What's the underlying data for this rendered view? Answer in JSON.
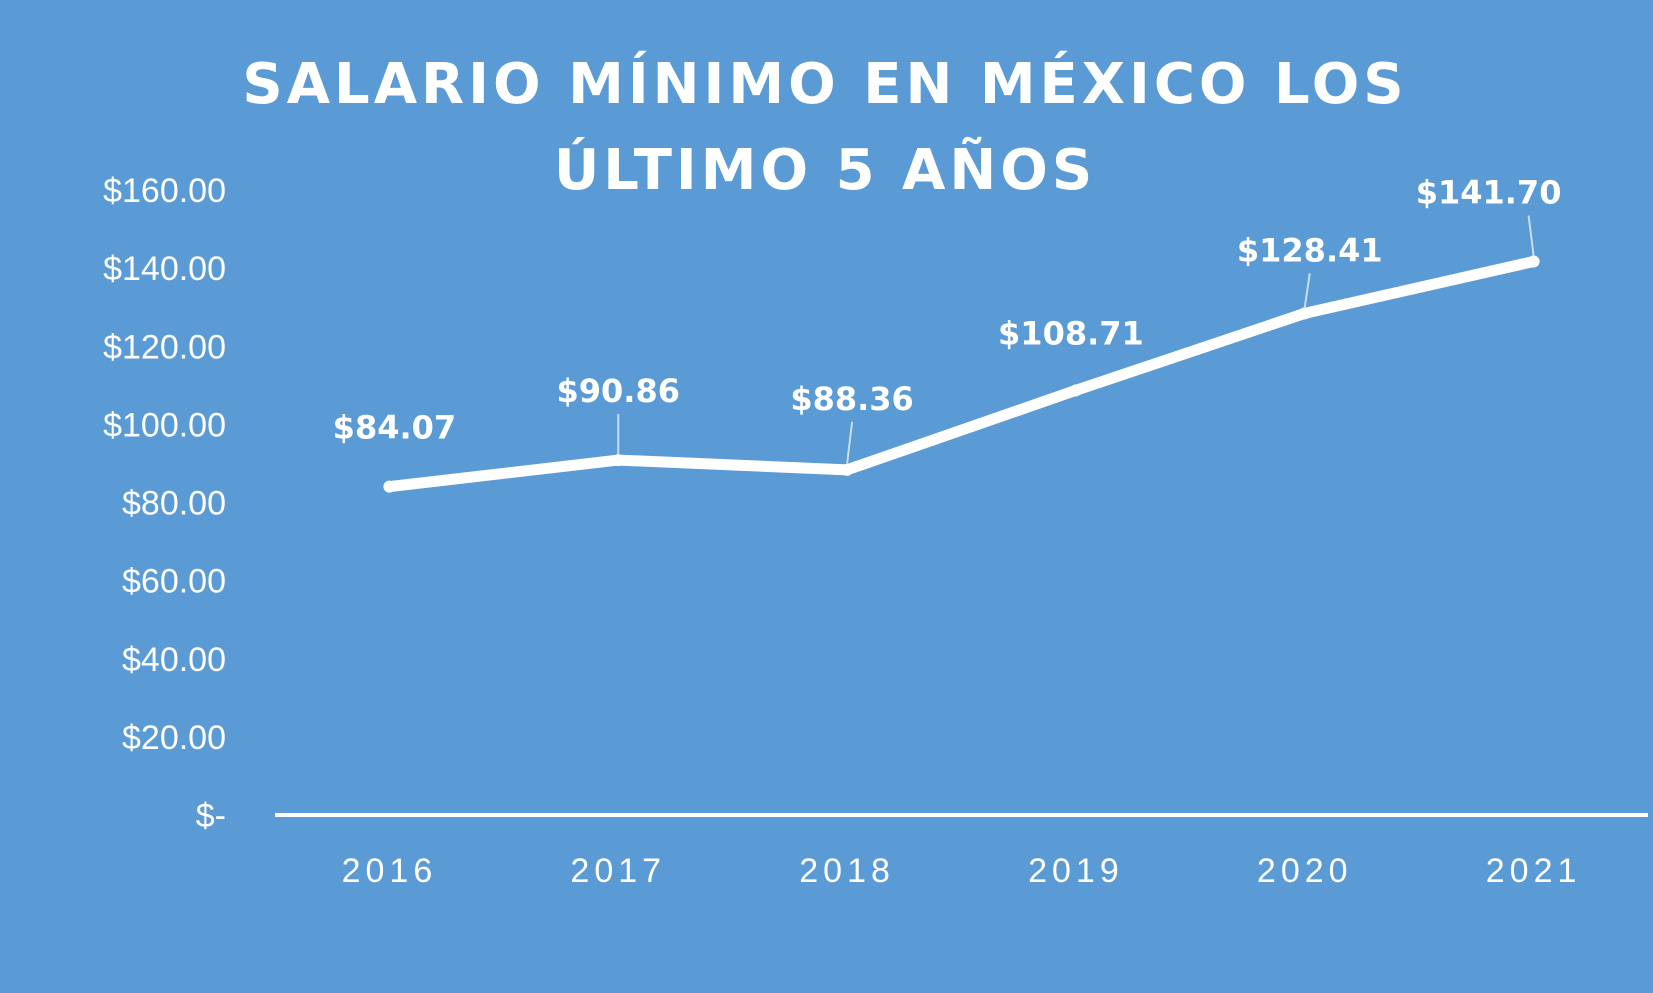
{
  "chart_data": {
    "type": "line",
    "title": "SALARIO MÍNIMO EN MÉXICO LOS ÚLTIMO 5 AÑOS",
    "categories": [
      "2016",
      "2017",
      "2018",
      "2019",
      "2020",
      "2021"
    ],
    "values": [
      84.07,
      90.86,
      88.36,
      108.71,
      128.41,
      141.7
    ],
    "data_labels": [
      "$84.07",
      "$90.86",
      "$88.36",
      "$108.71",
      "$128.41",
      "$141.70"
    ],
    "y_tick_values": [
      0,
      20,
      40,
      60,
      80,
      100,
      120,
      140,
      160
    ],
    "y_tick_labels": [
      "$-",
      "$20.00",
      "$40.00",
      "$60.00",
      "$80.00",
      "$100.00",
      "$120.00",
      "$140.00",
      "$160.00"
    ],
    "ylim": [
      0,
      160
    ],
    "xlabel": "",
    "ylabel": "",
    "grid": false,
    "drop_lines": true,
    "legend": "none"
  },
  "colors": {
    "background": "#5b9bd5",
    "line": "#ffffff",
    "text": "#ffffff"
  }
}
